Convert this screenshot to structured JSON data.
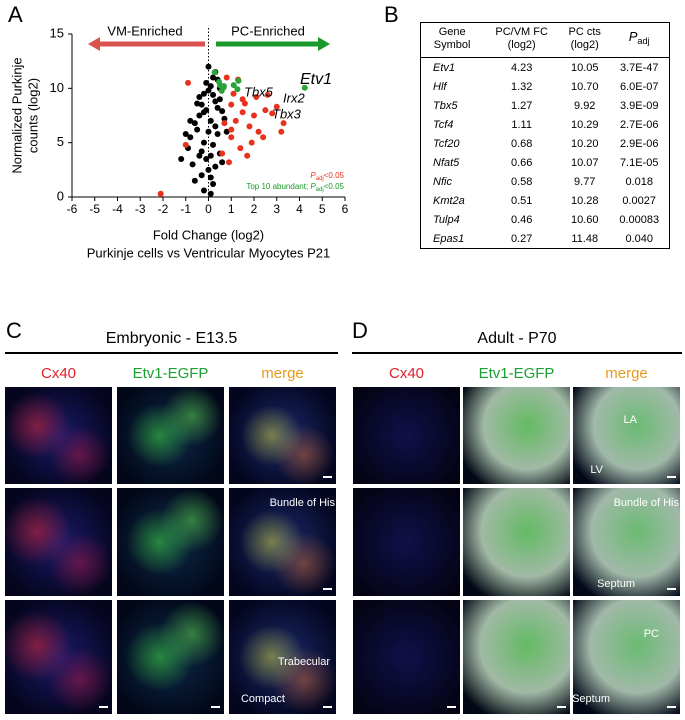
{
  "panel_labels": [
    "A",
    "B",
    "C",
    "D"
  ],
  "chart_data": {
    "type": "scatter",
    "xlabel": "Fold Change (log2)",
    "subtitle": "Purkinje cells vs Ventricular Myocytes P21",
    "ylabel": [
      "Normalized Purkinje",
      "counts (log2)"
    ],
    "xlim": [
      -6,
      6
    ],
    "xticks": [
      -6,
      -5,
      -4,
      -3,
      -2,
      -1,
      0,
      1,
      2,
      3,
      4,
      5,
      6
    ],
    "ylim": [
      0,
      15
    ],
    "yticks": [
      0,
      5,
      10,
      15
    ],
    "arrows": [
      {
        "label": "VM-Enriched",
        "color": "#d9534f"
      },
      {
        "label": "PC-Enriched",
        "color": "#1a9a2a"
      }
    ],
    "annotations": [
      "Etv1",
      "Tbx5",
      "Irx2",
      "Tbx3"
    ],
    "legend_labels": [
      {
        "p": "P",
        "sub": "adj",
        "suffix": "<0.05",
        "color": "#e8321e"
      },
      {
        "prefix": "Top 10 abundant; ",
        "p": "P",
        "sub": "adj",
        "suffix": "<0.05",
        "color": "#1a9a2a"
      }
    ],
    "series": [
      {
        "color": "#000000",
        "x": [
          -0.2,
          0.1,
          0.3,
          -0.4,
          0.5,
          -0.6,
          0.2,
          -0.1,
          0.4,
          0.0,
          -0.3,
          0.6,
          -0.8,
          0.1,
          -0.5,
          0.3,
          -0.2,
          0.7,
          -0.9,
          0.2,
          -0.1,
          0.4,
          -0.4,
          0.0,
          0.5,
          -0.7,
          0.1,
          -0.3,
          0.3,
          -1.0,
          0.2,
          -0.2,
          0.6,
          -0.6,
          0.0,
          0.4,
          -0.1,
          -1.2,
          0.1,
          -0.4,
          0.3,
          0.8,
          -0.5,
          0.2,
          0.0,
          -0.2,
          0.5,
          -0.8,
          0.1,
          -0.3
        ],
        "values": [
          9.5,
          10.2,
          8.8,
          7.5,
          9.0,
          6.8,
          11.0,
          10.5,
          8.2,
          9.8,
          8.5,
          7.9,
          5.5,
          7.0,
          6.2,
          6.5,
          5.0,
          7.2,
          4.5,
          4.8,
          3.5,
          5.8,
          3.8,
          2.5,
          4.0,
          3.0,
          1.8,
          2.0,
          2.8,
          5.8,
          1.2,
          0.6,
          3.2,
          1.5,
          12.0,
          10.8,
          8.0,
          3.5,
          0.3,
          9.2,
          11.5,
          6.0,
          8.6,
          9.4,
          6.0,
          7.8,
          10.0,
          7.0,
          3.8,
          4.2
        ]
      },
      {
        "color": "#e8321e",
        "x": [
          0.8,
          1.0,
          1.5,
          2.0,
          1.2,
          1.8,
          2.5,
          1.0,
          1.4,
          2.2,
          0.9,
          3.0,
          1.6,
          2.8,
          1.1,
          1.9,
          3.2,
          0.7,
          1.3,
          2.4,
          1.7,
          0.6,
          2.1,
          1.0,
          -1.0,
          -0.9,
          -2.1,
          1.5,
          2.6,
          3.3
        ],
        "values": [
          11.0,
          8.5,
          9.0,
          7.5,
          7.0,
          6.5,
          8.0,
          5.5,
          4.5,
          6.0,
          3.2,
          8.3,
          8.6,
          7.7,
          9.5,
          5.0,
          6.0,
          6.8,
          10.8,
          5.5,
          3.8,
          4.0,
          9.2,
          6.2,
          4.8,
          10.5,
          0.3,
          7.8,
          9.4,
          6.8
        ]
      },
      {
        "color": "#2aa33a",
        "x": [
          4.23,
          1.32,
          1.27,
          1.11,
          0.68,
          0.66,
          0.58,
          0.51,
          0.46,
          0.27
        ],
        "values": [
          10.05,
          10.7,
          9.92,
          10.29,
          10.2,
          10.07,
          9.77,
          10.28,
          10.6,
          11.48
        ]
      }
    ]
  },
  "table": {
    "header": [
      [
        "Gene",
        "Symbol"
      ],
      [
        "PC/VM FC",
        "(log2)"
      ],
      [
        "PC cts",
        "(log2)"
      ],
      {
        "p": "P",
        "sub": "adj"
      }
    ],
    "rows": [
      [
        "Etv1",
        "4.23",
        "10.05",
        "3.7E-47"
      ],
      [
        "Hlf",
        "1.32",
        "10.70",
        "6.0E-07"
      ],
      [
        "Tbx5",
        "1.27",
        "9.92",
        "3.9E-09"
      ],
      [
        "Tcf4",
        "1.11",
        "10.29",
        "2.7E-06"
      ],
      [
        "Tcf20",
        "0.68",
        "10.20",
        "2.9E-06"
      ],
      [
        "Nfat5",
        "0.66",
        "10.07",
        "7.1E-05"
      ],
      [
        "Nfic",
        "0.58",
        "9.77",
        "0.018"
      ],
      [
        "Kmt2a",
        "0.51",
        "10.28",
        "0.0027"
      ],
      [
        "Tulp4",
        "0.46",
        "10.60",
        "0.00083"
      ],
      [
        "Epas1",
        "0.27",
        "11.48",
        "0.040"
      ]
    ]
  },
  "panel_c": {
    "title": "Embryonic - E13.5",
    "columns": [
      "Cx40",
      "Etv1-EGFP",
      "merge"
    ],
    "labels": [
      "Bundle of His",
      "Trabecular",
      "Compact"
    ]
  },
  "panel_d": {
    "title": "Adult - P70",
    "columns": [
      "Cx40",
      "Etv1-EGFP",
      "merge"
    ],
    "labels": [
      "LA",
      "LV",
      "Bundle of His",
      "Septum",
      "PC",
      "Septum"
    ]
  }
}
